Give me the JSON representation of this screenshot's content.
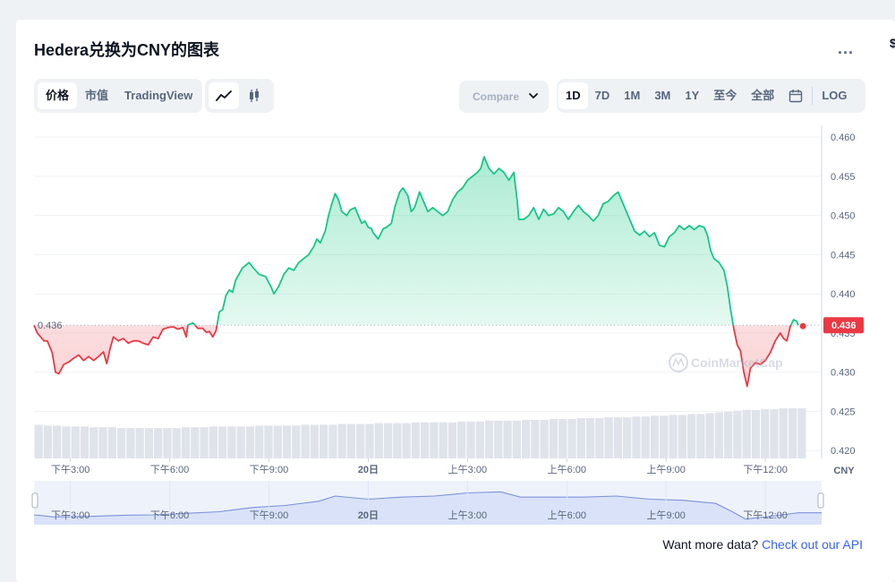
{
  "page": {
    "title": "Hedera兑换为CNY的图表",
    "more_label": "...",
    "edge_glyph": "$"
  },
  "tabs": {
    "price": "价格",
    "market_cap": "市值",
    "tradingview": "TradingView"
  },
  "chart_icons": {
    "line": "line-chart-icon",
    "candle": "candlestick-icon"
  },
  "compare": {
    "label": "Compare"
  },
  "ranges": {
    "d1": "1D",
    "d7": "7D",
    "m1": "1M",
    "m3": "3M",
    "y1": "1Y",
    "ytd": "至今",
    "all": "全部",
    "log": "LOG"
  },
  "footer": {
    "prefix": "Want more data?",
    "link": "Check out our API"
  },
  "watermark": "CoinMarketCap",
  "colors": {
    "up": "#16c784",
    "down": "#ea3943",
    "navigator": "#c9d6f7"
  },
  "chart_data": {
    "type": "line",
    "currency": "CNY",
    "base_value": 0.436,
    "current_value": 0.436,
    "base_label": "0.436",
    "current_label": "0.436",
    "ylim": [
      0.419,
      0.4615
    ],
    "y_ticks": [
      "0.460",
      "0.455",
      "0.450",
      "0.445",
      "0.440",
      "0.435",
      "0.430",
      "0.425",
      "0.420"
    ],
    "y_tick_values": [
      0.46,
      0.455,
      0.45,
      0.445,
      0.44,
      0.435,
      0.43,
      0.425,
      0.42
    ],
    "x_range": [
      13.9,
      37.7
    ],
    "x_ticks": [
      {
        "x": 15,
        "label": "下午3:00",
        "bold": false
      },
      {
        "x": 18,
        "label": "下午6:00",
        "bold": false
      },
      {
        "x": 21,
        "label": "下午9:00",
        "bold": false
      },
      {
        "x": 24,
        "label": "20日",
        "bold": true
      },
      {
        "x": 27,
        "label": "上午3:00",
        "bold": false
      },
      {
        "x": 30,
        "label": "上午6:00",
        "bold": false
      },
      {
        "x": 33,
        "label": "上午9:00",
        "bold": false
      },
      {
        "x": 36,
        "label": "下午12:00",
        "bold": false
      }
    ],
    "series": [
      {
        "values": [
          [
            13.9,
            0.436
          ],
          [
            14.0,
            0.435
          ],
          [
            14.1,
            0.4345
          ],
          [
            14.2,
            0.434
          ],
          [
            14.3,
            0.434
          ],
          [
            14.45,
            0.4325
          ],
          [
            14.55,
            0.43
          ],
          [
            14.65,
            0.4298
          ],
          [
            14.8,
            0.431
          ],
          [
            14.95,
            0.4313
          ],
          [
            15.1,
            0.4318
          ],
          [
            15.25,
            0.4322
          ],
          [
            15.4,
            0.4315
          ],
          [
            15.55,
            0.432
          ],
          [
            15.7,
            0.4315
          ],
          [
            15.85,
            0.432
          ],
          [
            16.0,
            0.4326
          ],
          [
            16.1,
            0.4311
          ],
          [
            16.2,
            0.433
          ],
          [
            16.3,
            0.4345
          ],
          [
            16.45,
            0.434
          ],
          [
            16.6,
            0.4343
          ],
          [
            16.75,
            0.4337
          ],
          [
            16.9,
            0.434
          ],
          [
            17.05,
            0.434
          ],
          [
            17.2,
            0.4337
          ],
          [
            17.35,
            0.4335
          ],
          [
            17.5,
            0.4345
          ],
          [
            17.65,
            0.4343
          ],
          [
            17.8,
            0.4355
          ],
          [
            17.95,
            0.4357
          ],
          [
            18.1,
            0.4358
          ],
          [
            18.25,
            0.4355
          ],
          [
            18.4,
            0.4357
          ],
          [
            18.5,
            0.4345
          ],
          [
            18.55,
            0.436
          ],
          [
            18.7,
            0.4363
          ],
          [
            18.85,
            0.4356
          ],
          [
            19.0,
            0.4356
          ],
          [
            19.1,
            0.4351
          ],
          [
            19.2,
            0.4352
          ],
          [
            19.3,
            0.4345
          ],
          [
            19.4,
            0.4353
          ],
          [
            19.5,
            0.4377
          ],
          [
            19.6,
            0.438
          ],
          [
            19.7,
            0.4398
          ],
          [
            19.8,
            0.4405
          ],
          [
            19.9,
            0.4402
          ],
          [
            20.0,
            0.4418
          ],
          [
            20.2,
            0.4433
          ],
          [
            20.4,
            0.444
          ],
          [
            20.55,
            0.4432
          ],
          [
            20.7,
            0.4425
          ],
          [
            20.9,
            0.4422
          ],
          [
            21.05,
            0.441
          ],
          [
            21.15,
            0.44
          ],
          [
            21.3,
            0.441
          ],
          [
            21.45,
            0.4425
          ],
          [
            21.6,
            0.4433
          ],
          [
            21.75,
            0.443
          ],
          [
            21.9,
            0.444
          ],
          [
            22.05,
            0.4445
          ],
          [
            22.2,
            0.445
          ],
          [
            22.35,
            0.446
          ],
          [
            22.45,
            0.447
          ],
          [
            22.55,
            0.4465
          ],
          [
            22.7,
            0.448
          ],
          [
            22.8,
            0.45
          ],
          [
            22.9,
            0.4515
          ],
          [
            23.0,
            0.4528
          ],
          [
            23.1,
            0.452
          ],
          [
            23.2,
            0.4505
          ],
          [
            23.35,
            0.45
          ],
          [
            23.45,
            0.4507
          ],
          [
            23.6,
            0.451
          ],
          [
            23.7,
            0.45
          ],
          [
            23.8,
            0.449
          ],
          [
            23.9,
            0.4493
          ],
          [
            24.0,
            0.4485
          ],
          [
            24.1,
            0.4483
          ],
          [
            24.15,
            0.4478
          ],
          [
            24.3,
            0.447
          ],
          [
            24.45,
            0.4483
          ],
          [
            24.55,
            0.4485
          ],
          [
            24.7,
            0.449
          ],
          [
            24.8,
            0.451
          ],
          [
            24.95,
            0.453
          ],
          [
            25.05,
            0.4535
          ],
          [
            25.2,
            0.4525
          ],
          [
            25.3,
            0.4505
          ],
          [
            25.4,
            0.451
          ],
          [
            25.55,
            0.453
          ],
          [
            25.7,
            0.4515
          ],
          [
            25.8,
            0.4505
          ],
          [
            25.95,
            0.451
          ],
          [
            26.1,
            0.4505
          ],
          [
            26.25,
            0.45
          ],
          [
            26.4,
            0.4505
          ],
          [
            26.55,
            0.452
          ],
          [
            26.7,
            0.453
          ],
          [
            26.85,
            0.4535
          ],
          [
            27.0,
            0.4545
          ],
          [
            27.15,
            0.455
          ],
          [
            27.3,
            0.4555
          ],
          [
            27.4,
            0.456
          ],
          [
            27.5,
            0.4575
          ],
          [
            27.65,
            0.456
          ],
          [
            27.8,
            0.4553
          ],
          [
            27.95,
            0.456
          ],
          [
            28.1,
            0.4555
          ],
          [
            28.25,
            0.4545
          ],
          [
            28.4,
            0.4555
          ],
          [
            28.5,
            0.452
          ],
          [
            28.55,
            0.4495
          ],
          [
            28.7,
            0.4495
          ],
          [
            28.85,
            0.45
          ],
          [
            29.0,
            0.451
          ],
          [
            29.15,
            0.4495
          ],
          [
            29.3,
            0.4508
          ],
          [
            29.45,
            0.45
          ],
          [
            29.6,
            0.4502
          ],
          [
            29.75,
            0.451
          ],
          [
            29.9,
            0.4505
          ],
          [
            30.05,
            0.4495
          ],
          [
            30.2,
            0.4505
          ],
          [
            30.35,
            0.4513
          ],
          [
            30.5,
            0.4505
          ],
          [
            30.65,
            0.45
          ],
          [
            30.8,
            0.4493
          ],
          [
            30.95,
            0.45
          ],
          [
            31.1,
            0.4515
          ],
          [
            31.25,
            0.4518
          ],
          [
            31.4,
            0.4525
          ],
          [
            31.55,
            0.453
          ],
          [
            31.7,
            0.4515
          ],
          [
            31.85,
            0.45
          ],
          [
            31.95,
            0.449
          ],
          [
            32.05,
            0.448
          ],
          [
            32.2,
            0.4475
          ],
          [
            32.35,
            0.448
          ],
          [
            32.5,
            0.4473
          ],
          [
            32.65,
            0.4478
          ],
          [
            32.8,
            0.4462
          ],
          [
            32.95,
            0.446
          ],
          [
            33.1,
            0.4473
          ],
          [
            33.25,
            0.4478
          ],
          [
            33.4,
            0.4487
          ],
          [
            33.55,
            0.4482
          ],
          [
            33.7,
            0.4487
          ],
          [
            33.85,
            0.4482
          ],
          [
            34.0,
            0.4487
          ],
          [
            34.15,
            0.4485
          ],
          [
            34.25,
            0.4475
          ],
          [
            34.35,
            0.4455
          ],
          [
            34.45,
            0.4445
          ],
          [
            34.6,
            0.444
          ],
          [
            34.75,
            0.443
          ],
          [
            34.85,
            0.441
          ],
          [
            34.95,
            0.438
          ],
          [
            35.05,
            0.4355
          ],
          [
            35.15,
            0.4335
          ],
          [
            35.25,
            0.4327
          ],
          [
            35.35,
            0.43
          ],
          [
            35.45,
            0.4282
          ],
          [
            35.55,
            0.4305
          ],
          [
            35.7,
            0.4312
          ],
          [
            35.85,
            0.431
          ],
          [
            36.0,
            0.4315
          ],
          [
            36.15,
            0.4325
          ],
          [
            36.3,
            0.434
          ],
          [
            36.45,
            0.435
          ],
          [
            36.55,
            0.4343
          ],
          [
            36.65,
            0.434
          ],
          [
            36.75,
            0.4358
          ],
          [
            36.85,
            0.4367
          ],
          [
            36.95,
            0.4365
          ],
          [
            37.0,
            0.436
          ]
        ]
      }
    ],
    "volume": [
      30,
      29,
      29,
      28,
      28,
      28,
      27,
      27,
      27,
      26,
      26,
      26,
      26,
      26,
      26,
      26,
      27,
      27,
      27,
      28,
      28,
      28,
      28,
      28,
      29,
      29,
      29,
      29,
      29,
      30,
      30,
      30,
      30,
      31,
      31,
      31,
      31,
      32,
      32,
      32,
      32,
      33,
      33,
      33,
      33,
      33,
      34,
      34,
      34,
      35,
      35,
      35,
      35,
      36,
      36,
      36,
      37,
      37,
      37,
      38,
      38,
      38,
      39,
      39,
      39,
      40,
      40,
      41,
      41,
      42,
      42,
      43,
      43,
      44,
      45,
      46,
      47,
      48,
      48,
      49,
      49,
      50,
      50,
      50
    ],
    "navigator": [
      [
        13.9,
        0.434
      ],
      [
        14.5,
        0.432
      ],
      [
        15.5,
        0.4325
      ],
      [
        16.5,
        0.4335
      ],
      [
        17.5,
        0.434
      ],
      [
        18.5,
        0.4355
      ],
      [
        19.5,
        0.437
      ],
      [
        20.5,
        0.441
      ],
      [
        21.5,
        0.443
      ],
      [
        22.5,
        0.447
      ],
      [
        23.0,
        0.452
      ],
      [
        24.0,
        0.449
      ],
      [
        25.0,
        0.451
      ],
      [
        26.0,
        0.452
      ],
      [
        27.0,
        0.455
      ],
      [
        28.0,
        0.456
      ],
      [
        28.6,
        0.451
      ],
      [
        29.5,
        0.451
      ],
      [
        30.5,
        0.451
      ],
      [
        31.5,
        0.452
      ],
      [
        32.5,
        0.449
      ],
      [
        33.5,
        0.448
      ],
      [
        34.5,
        0.445
      ],
      [
        35.0,
        0.437
      ],
      [
        35.4,
        0.43
      ],
      [
        36.0,
        0.432
      ],
      [
        36.5,
        0.434
      ],
      [
        37.0,
        0.436
      ],
      [
        37.7,
        0.436
      ]
    ]
  }
}
